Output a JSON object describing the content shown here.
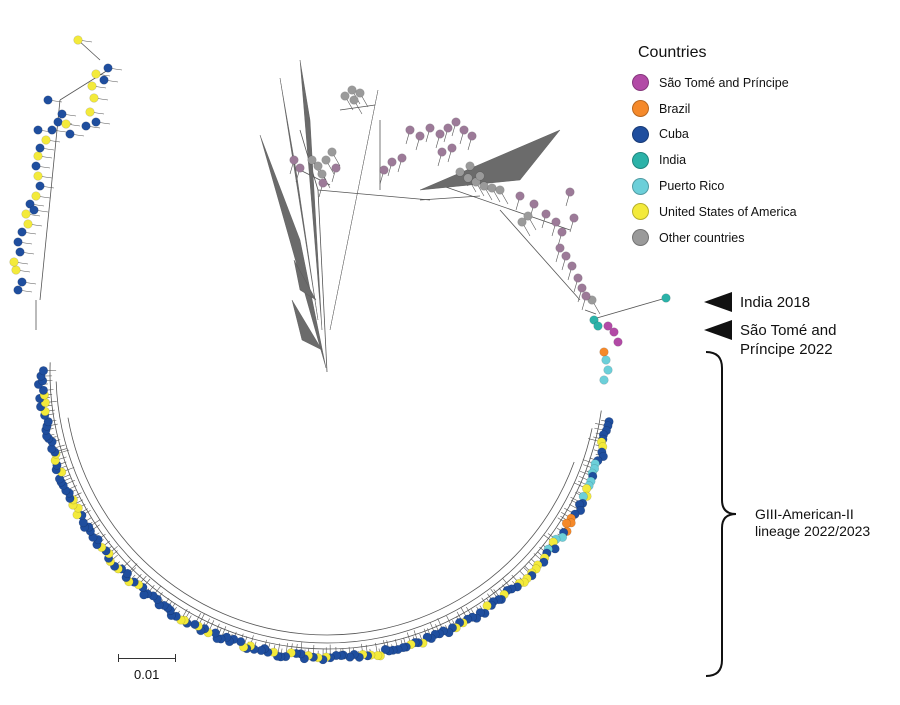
{
  "legend": {
    "title": "Countries",
    "items": [
      {
        "label": "São Tomé and Príncipe",
        "color": "#b24aa6"
      },
      {
        "label": "Brazil",
        "color": "#f5892a"
      },
      {
        "label": "Cuba",
        "color": "#1f4e9e"
      },
      {
        "label": "India",
        "color": "#2bb2a8"
      },
      {
        "label": "Puerto Rico",
        "color": "#6ccfd9"
      },
      {
        "label": "United States of America",
        "color": "#f3ea3b"
      },
      {
        "label": "Other countries",
        "color": "#9a9a9a"
      }
    ]
  },
  "annotations": {
    "india": "India 2018",
    "stp_line1": "São Tomé and",
    "stp_line2": "Príncipe 2022",
    "lineage_line1": "GIII-American-II",
    "lineage_line2": "lineage 2022/2023"
  },
  "scale": {
    "label": "0.01"
  },
  "colors": {
    "branch": "#555555",
    "clade": "#6b6b6b",
    "other_purple": "#9c7a98"
  }
}
